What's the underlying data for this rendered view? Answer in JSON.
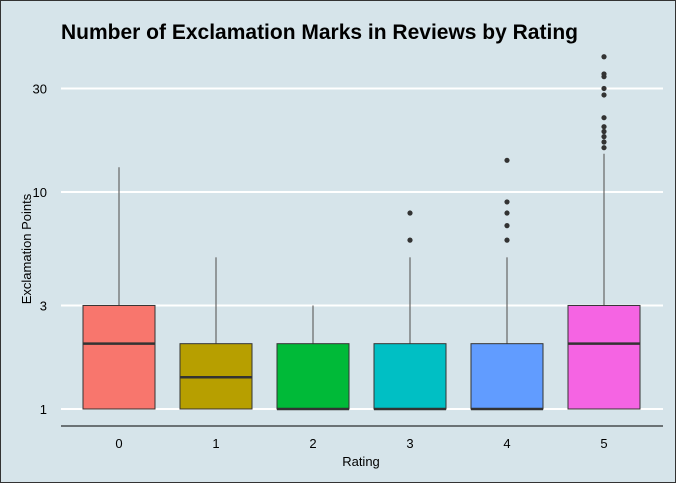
{
  "chart_data": {
    "type": "box",
    "title": "Number of Exclamation Marks in Reviews by Rating",
    "xlabel": "Rating",
    "ylabel": "Exclamation Points",
    "yscale": "log10",
    "ylim": [
      0.83,
      45
    ],
    "yticks": [
      1,
      3,
      10,
      30
    ],
    "ytick_labels": [
      "1",
      "3",
      "10",
      "30"
    ],
    "grid": "horizontal major lines (white)",
    "legend": "none",
    "categories": [
      "0",
      "1",
      "2",
      "3",
      "4",
      "5"
    ],
    "colors": [
      "#F8766D",
      "#B79F00",
      "#00BA38",
      "#00BFC4",
      "#619CFF",
      "#F564E3"
    ],
    "boxes": [
      {
        "category": "0",
        "whisker_low": 1,
        "q1": 1,
        "median": 2,
        "q3": 3,
        "whisker_high": 13,
        "outliers": []
      },
      {
        "category": "1",
        "whisker_low": 1,
        "q1": 1,
        "median": 1.4,
        "q3": 2,
        "whisker_high": 5,
        "outliers": []
      },
      {
        "category": "2",
        "whisker_low": 1,
        "q1": 1,
        "median": 1,
        "q3": 2,
        "whisker_high": 3,
        "outliers": []
      },
      {
        "category": "3",
        "whisker_low": 1,
        "q1": 1,
        "median": 1,
        "q3": 2,
        "whisker_high": 5,
        "outliers": [
          6,
          8
        ]
      },
      {
        "category": "4",
        "whisker_low": 1,
        "q1": 1,
        "median": 1,
        "q3": 2,
        "whisker_high": 5,
        "outliers": [
          6,
          7,
          8,
          9,
          14
        ]
      },
      {
        "category": "5",
        "whisker_low": 1,
        "q1": 1,
        "median": 2,
        "q3": 3,
        "whisker_high": 15,
        "outliers": [
          16,
          17,
          18,
          19,
          20,
          22,
          28,
          30,
          34,
          35,
          42
        ]
      }
    ]
  }
}
